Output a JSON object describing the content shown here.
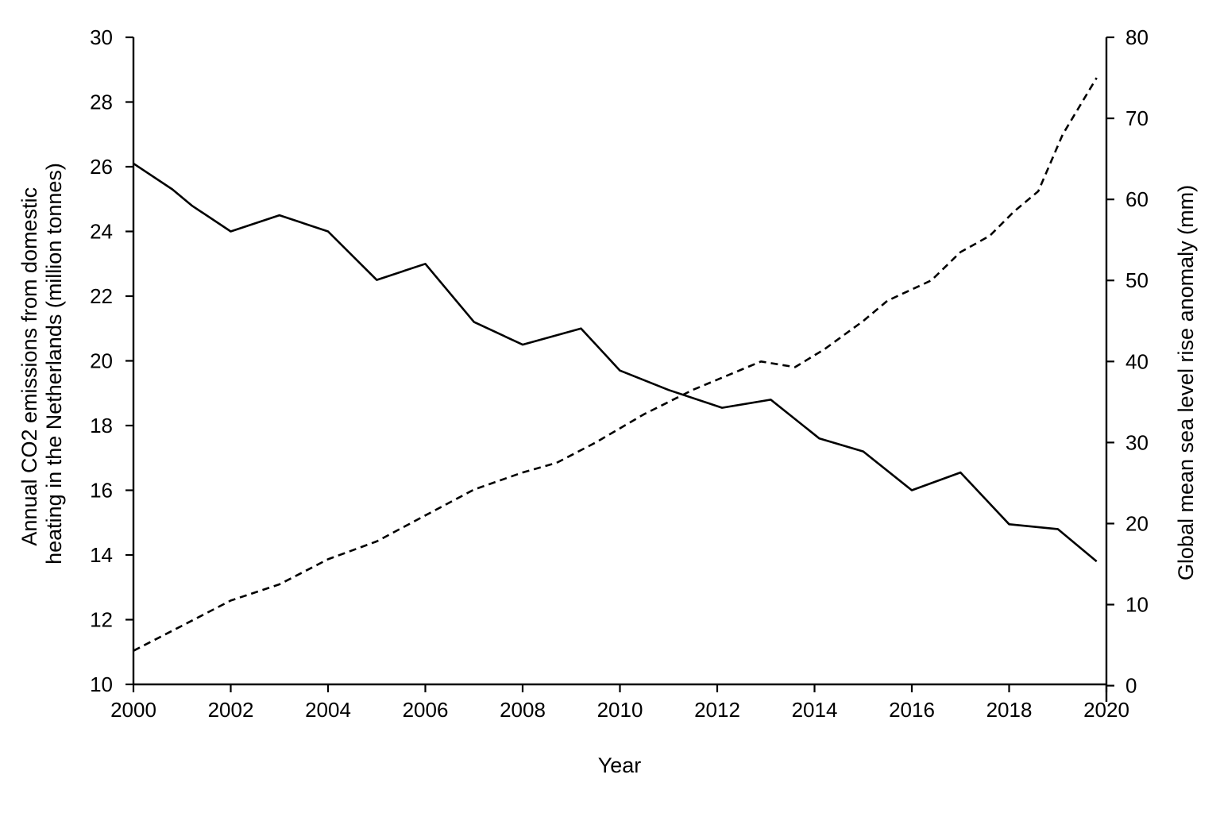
{
  "chart_data": {
    "type": "line",
    "xlabel": "Year",
    "ylabel_left_lines": [
      "Annual CO2 emissions from domestic",
      "heating in the Netherlands (million tonnes)"
    ],
    "ylabel_right": "Global mean sea level rise anomaly (mm)",
    "xlim": [
      2000,
      2020
    ],
    "ylim_left": [
      10,
      30
    ],
    "ylim_right": [
      -2,
      80
    ],
    "x_ticks": [
      2000,
      2002,
      2004,
      2006,
      2008,
      2010,
      2012,
      2014,
      2016,
      2018,
      2020
    ],
    "y_ticks_left": [
      10,
      12,
      14,
      16,
      18,
      20,
      22,
      24,
      26,
      28,
      30
    ],
    "y_ticks_right": [
      0,
      10,
      20,
      30,
      40,
      50,
      60,
      70,
      80
    ],
    "grid": false,
    "series": [
      {
        "style": "solid",
        "axis": "left",
        "x": [
          2000,
          2000.8,
          2001.2,
          2002,
          2003,
          2004,
          2005,
          2006,
          2007,
          2008,
          2009.2,
          2010,
          2011,
          2012.1,
          2013.1,
          2014.1,
          2015,
          2016,
          2017,
          2018,
          2019,
          2019.8
        ],
        "values": [
          26.1,
          25.3,
          24.8,
          24.0,
          24.5,
          24.0,
          22.5,
          23.0,
          21.2,
          20.5,
          21.0,
          19.7,
          19.1,
          18.55,
          18.8,
          17.6,
          17.2,
          16.0,
          16.55,
          14.95,
          14.8,
          13.8
        ]
      },
      {
        "style": "dashed",
        "axis": "right",
        "x": [
          2000,
          2001,
          2002,
          2003,
          2004,
          2005,
          2006,
          2007,
          2008,
          2008.7,
          2009.5,
          2010.5,
          2011.5,
          2012.5,
          2012.9,
          2013.6,
          2014.2,
          2015,
          2015.5,
          2016.4,
          2017,
          2017.6,
          2018.1,
          2018.6,
          2019.1,
          2019.8
        ],
        "values": [
          4.3,
          7.4,
          10.5,
          12.5,
          15.6,
          17.8,
          21.0,
          24.2,
          26.3,
          27.5,
          30.0,
          33.5,
          36.5,
          39.0,
          40.0,
          39.3,
          41.5,
          45.0,
          47.5,
          50.0,
          53.5,
          55.5,
          58.5,
          61.0,
          68.0,
          75.0
        ]
      }
    ]
  }
}
